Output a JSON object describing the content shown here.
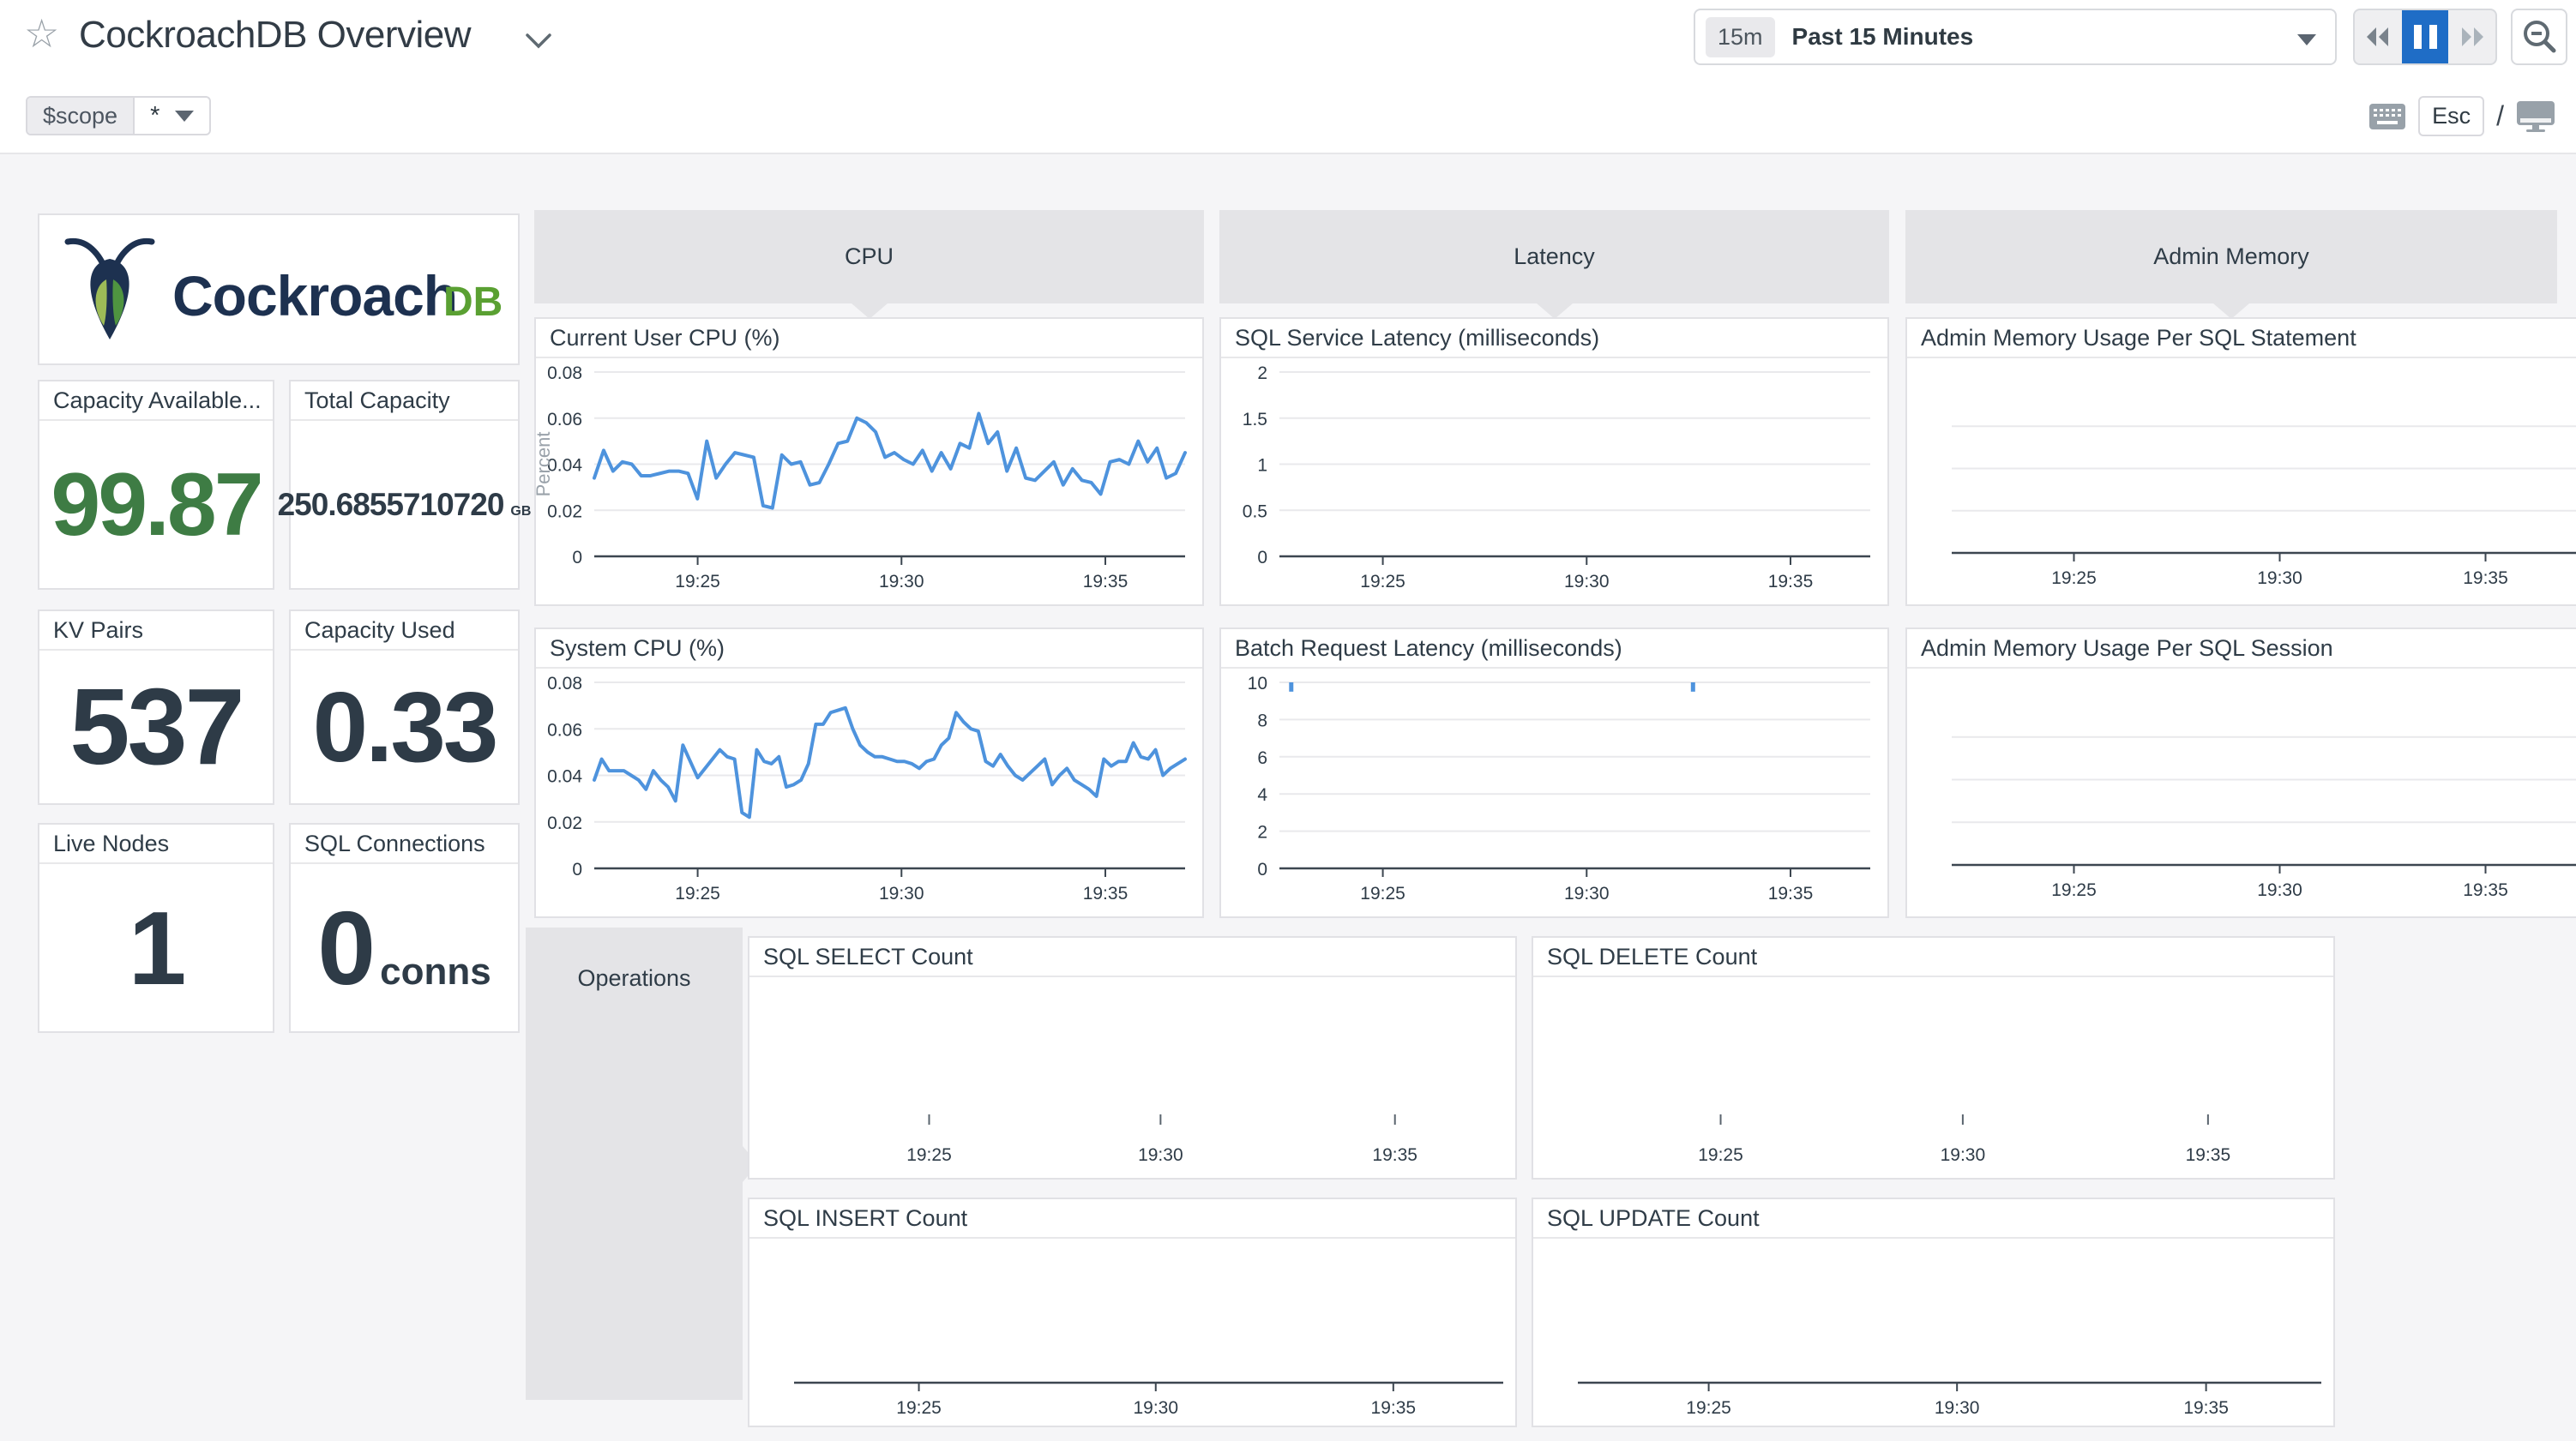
{
  "header": {
    "title": "CockroachDB Overview",
    "time": {
      "badge": "15m",
      "label": "Past 15 Minutes"
    },
    "shortcuts": {
      "esc": "Esc",
      "slash": "/"
    }
  },
  "scope": {
    "label": "$scope",
    "value": "*"
  },
  "logo": {
    "brand": "Cockroach",
    "suffix": "DB"
  },
  "stats": {
    "capacity_available": {
      "title": "Capacity Available...",
      "value": "99.87"
    },
    "total_capacity": {
      "title": "Total Capacity",
      "value": "250.6855710720",
      "unit": "GB"
    },
    "kv_pairs": {
      "title": "KV Pairs",
      "value": "537"
    },
    "capacity_used": {
      "title": "Capacity Used",
      "value": "0.33"
    },
    "live_nodes": {
      "title": "Live Nodes",
      "value": "1"
    },
    "sql_connections": {
      "title": "SQL Connections",
      "value": "0",
      "unit": "conns"
    }
  },
  "groups": {
    "cpu": "CPU",
    "latency": "Latency",
    "admin_memory": "Admin Memory",
    "operations": "Operations"
  },
  "colors": {
    "line_blue": "#4e93dd",
    "active_blue": "#1f6dc6",
    "stat_green": "#3e7c44",
    "dark_text": "#2e3b47",
    "logo_navy": "#1d3150",
    "logo_green": "#5aa032"
  },
  "chart_data": [
    {
      "id": "current_user_cpu",
      "type": "line",
      "title": "Current User CPU (%)",
      "ylabel": "Percent",
      "ylim": [
        0,
        0.08
      ],
      "yticks": [
        "0",
        "0.02",
        "0.04",
        "0.06",
        "0.08"
      ],
      "xticks": [
        "19:25",
        "19:30",
        "19:35"
      ],
      "values": [
        0.034,
        0.046,
        0.037,
        0.041,
        0.04,
        0.035,
        0.035,
        0.036,
        0.037,
        0.037,
        0.036,
        0.025,
        0.05,
        0.034,
        0.04,
        0.045,
        0.044,
        0.043,
        0.022,
        0.021,
        0.044,
        0.04,
        0.041,
        0.031,
        0.032,
        0.04,
        0.049,
        0.05,
        0.06,
        0.058,
        0.054,
        0.043,
        0.045,
        0.042,
        0.04,
        0.046,
        0.037,
        0.045,
        0.038,
        0.049,
        0.047,
        0.062,
        0.049,
        0.054,
        0.037,
        0.047,
        0.034,
        0.033,
        0.037,
        0.041,
        0.031,
        0.038,
        0.033,
        0.032,
        0.027,
        0.041,
        0.042,
        0.04,
        0.05,
        0.041,
        0.047,
        0.034,
        0.036,
        0.045
      ]
    },
    {
      "id": "system_cpu",
      "type": "line",
      "title": "System CPU (%)",
      "ylim": [
        0,
        0.08
      ],
      "yticks": [
        "0",
        "0.02",
        "0.04",
        "0.06",
        "0.08"
      ],
      "xticks": [
        "19:25",
        "19:30",
        "19:35"
      ],
      "values": [
        0.038,
        0.047,
        0.042,
        0.042,
        0.042,
        0.04,
        0.038,
        0.034,
        0.042,
        0.038,
        0.035,
        0.029,
        0.053,
        0.046,
        0.039,
        0.043,
        0.047,
        0.051,
        0.048,
        0.047,
        0.024,
        0.022,
        0.051,
        0.046,
        0.045,
        0.048,
        0.035,
        0.036,
        0.038,
        0.045,
        0.062,
        0.062,
        0.067,
        0.068,
        0.069,
        0.06,
        0.053,
        0.05,
        0.048,
        0.048,
        0.047,
        0.046,
        0.046,
        0.045,
        0.043,
        0.046,
        0.047,
        0.053,
        0.056,
        0.067,
        0.063,
        0.06,
        0.059,
        0.046,
        0.044,
        0.049,
        0.044,
        0.04,
        0.038,
        0.041,
        0.044,
        0.047,
        0.036,
        0.04,
        0.043,
        0.038,
        0.036,
        0.034,
        0.031,
        0.047,
        0.044,
        0.046,
        0.046,
        0.054,
        0.048,
        0.047,
        0.051,
        0.04,
        0.043,
        0.045,
        0.047
      ]
    },
    {
      "id": "sql_service_latency",
      "type": "line",
      "title": "SQL Service Latency (milliseconds)",
      "ylim": [
        0,
        2
      ],
      "yticks": [
        "0",
        "0.5",
        "1",
        "1.5",
        "2"
      ],
      "xticks": [
        "19:25",
        "19:30",
        "19:35"
      ],
      "values": []
    },
    {
      "id": "batch_request_latency",
      "type": "line",
      "title": "Batch Request Latency (milliseconds)",
      "ylim": [
        0,
        10
      ],
      "yticks": [
        "0",
        "2",
        "4",
        "6",
        "8",
        "10"
      ],
      "xticks": [
        "19:25",
        "19:30",
        "19:35"
      ],
      "values": [],
      "spike_marks": [
        {
          "x_frac": 0.02,
          "from": 10,
          "to": 9.5
        },
        {
          "x_frac": 0.7,
          "from": 10,
          "to": 9.5
        }
      ]
    },
    {
      "id": "admin_memory_usage_per_sql_statement",
      "type": "line",
      "title": "Admin Memory Usage Per SQL Statement",
      "ylim": [
        0,
        1
      ],
      "yticks": [],
      "xticks": [
        "19:25",
        "19:30",
        "19:35"
      ],
      "values": []
    },
    {
      "id": "admin_memory_usage_per_sql_session",
      "type": "line",
      "title": "Admin Memory Usage Per SQL Session",
      "ylim": [
        0,
        1
      ],
      "yticks": [],
      "xticks": [
        "19:25",
        "19:30",
        "19:35"
      ],
      "values": []
    },
    {
      "id": "sql_select_count",
      "type": "line",
      "title": "SQL SELECT Count",
      "ylim": [
        0,
        1
      ],
      "yticks": [],
      "xticks": [
        "19:25",
        "19:30",
        "19:35"
      ],
      "values": []
    },
    {
      "id": "sql_delete_count",
      "type": "line",
      "title": "SQL DELETE Count",
      "ylim": [
        0,
        1
      ],
      "yticks": [],
      "xticks": [
        "19:25",
        "19:30",
        "19:35"
      ],
      "values": []
    },
    {
      "id": "sql_insert_count",
      "type": "line",
      "title": "SQL INSERT Count",
      "ylim": [
        0,
        1
      ],
      "yticks": [],
      "xticks": [
        "19:25",
        "19:30",
        "19:35"
      ],
      "values": []
    },
    {
      "id": "sql_update_count",
      "type": "line",
      "title": "SQL UPDATE Count",
      "ylim": [
        0,
        1
      ],
      "yticks": [],
      "xticks": [
        "19:25",
        "19:30",
        "19:35"
      ],
      "values": []
    }
  ]
}
